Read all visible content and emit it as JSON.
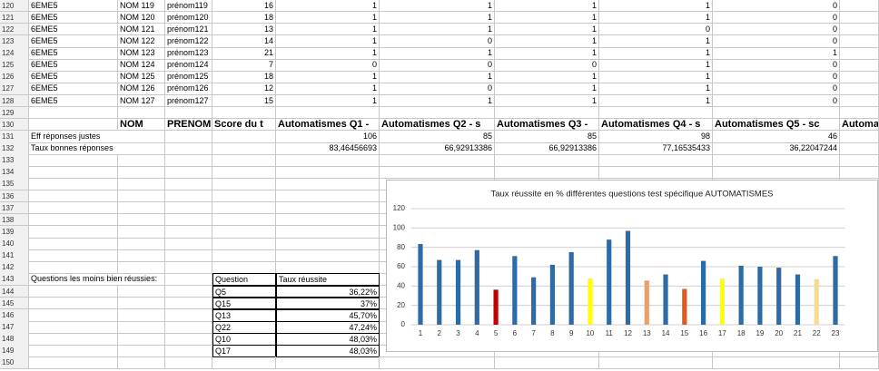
{
  "sheet": {
    "row_numbers": [
      120,
      121,
      122,
      123,
      124,
      125,
      126,
      127,
      128,
      129,
      130,
      131,
      132,
      133,
      134,
      135,
      136,
      137,
      138,
      139,
      140,
      141,
      142,
      143,
      144,
      145,
      146,
      147,
      148,
      149,
      150
    ],
    "student_rows": [
      [
        "6EME5",
        "NOM 119",
        "prénom119",
        16,
        1,
        1,
        1,
        1,
        0
      ],
      [
        "6EME5",
        "NOM 120",
        "prénom120",
        18,
        1,
        1,
        1,
        1,
        0
      ],
      [
        "6EME5",
        "NOM 121",
        "prénom121",
        13,
        1,
        1,
        1,
        0,
        0
      ],
      [
        "6EME5",
        "NOM 122",
        "prénom122",
        14,
        1,
        0,
        1,
        1,
        0
      ],
      [
        "6EME5",
        "NOM 123",
        "prénom123",
        21,
        1,
        1,
        1,
        1,
        1
      ],
      [
        "6EME5",
        "NOM 124",
        "prénom124",
        7,
        0,
        0,
        0,
        1,
        0
      ],
      [
        "6EME5",
        "NOM 125",
        "prénom125",
        18,
        1,
        1,
        1,
        1,
        0
      ],
      [
        "6EME5",
        "NOM 126",
        "prénom126",
        12,
        1,
        0,
        1,
        1,
        0
      ],
      [
        "6EME5",
        "NOM 127",
        "prénom127",
        15,
        1,
        1,
        1,
        1,
        0
      ]
    ],
    "header_row": [
      "NOM",
      "PRENOM",
      "Score du t",
      "Automatismes Q1 -",
      "Automatismes Q2 - s",
      "Automatismes Q3 -",
      "Automatismes Q4 - s",
      "Automatismes Q5 - sc",
      "Automa"
    ],
    "eff_row": {
      "label": "Eff réponses justes",
      "values": [
        106,
        85,
        85,
        98,
        46
      ]
    },
    "taux_row": {
      "label": "Taux bonnes réponses",
      "values": [
        "83,46456693",
        "66,92913386",
        "66,92913386",
        "77,16535433",
        "36,22047244"
      ]
    },
    "least": {
      "label": "Questions les moins bien réussies:",
      "header": [
        "Question",
        "Taux réussite"
      ],
      "rows": [
        [
          "Q5",
          "36,22%"
        ],
        [
          "Q15",
          "37%"
        ],
        [
          "Q13",
          "45,70%"
        ],
        [
          "Q22",
          "47,24%"
        ],
        [
          "Q10",
          "48,03%"
        ],
        [
          "Q17",
          "48,03%"
        ]
      ]
    }
  },
  "chart_data": {
    "type": "bar",
    "title": "Taux réussite en % différentes questions  test spécifique AUTOMATISMES",
    "categories": [
      "1",
      "2",
      "3",
      "4",
      "5",
      "6",
      "7",
      "8",
      "9",
      "10",
      "11",
      "12",
      "13",
      "14",
      "15",
      "16",
      "17",
      "18",
      "19",
      "20",
      "21",
      "22",
      "23"
    ],
    "values": [
      83.46,
      66.93,
      66.93,
      77.17,
      36.22,
      71,
      49,
      62,
      75,
      48.03,
      88,
      97,
      45.7,
      52,
      37,
      66,
      48.03,
      61,
      60,
      59,
      52,
      47.24,
      71
    ],
    "colors": [
      "#2e6aa6",
      "#2e6aa6",
      "#2e6aa6",
      "#2e6aa6",
      "#c00000",
      "#2e6aa6",
      "#2e6aa6",
      "#2e6aa6",
      "#2e6aa6",
      "#ffff00",
      "#2e6aa6",
      "#2e6aa6",
      "#e8a070",
      "#2e6aa6",
      "#e05a1a",
      "#2e6aa6",
      "#ffff00",
      "#2e6aa6",
      "#2e6aa6",
      "#2e6aa6",
      "#2e6aa6",
      "#f5dc90",
      "#2e6aa6"
    ],
    "ylim": [
      0,
      120
    ],
    "yticks": [
      0,
      20,
      40,
      60,
      80,
      100,
      120
    ],
    "grid": true
  }
}
